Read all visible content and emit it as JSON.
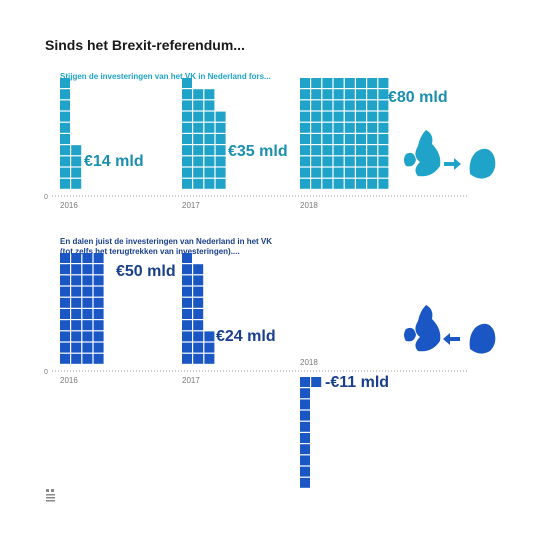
{
  "title": "Sinds het Brexit-referendum...",
  "chart_data": [
    {
      "type": "bar",
      "title": "Stijgen de investeringen van het VK in Nederland fors...",
      "categories": [
        "2016",
        "2017",
        "2018"
      ],
      "values": [
        14,
        35,
        80
      ],
      "value_labels": [
        "€14 mld",
        "€35 mld",
        "€80 mld"
      ],
      "unit": "mld euro",
      "zero_label": "0",
      "color": "#1fa3c8",
      "icon": "uk-to-netherlands-arrow-icon"
    },
    {
      "type": "bar",
      "title_lines": [
        "En dalen juist de investeringen van Nederland in het VK",
        "(tot zelfs het terugtrekken van investeringen)...."
      ],
      "categories": [
        "2016",
        "2017",
        "2018"
      ],
      "values": [
        50,
        24,
        -11
      ],
      "value_labels": [
        "€50 mld",
        "€24 mld",
        "-€11 mld"
      ],
      "unit": "mld euro",
      "zero_label": "0",
      "color": "#1a56c4",
      "icon": "netherlands-to-uk-arrow-icon"
    }
  ],
  "colors": {
    "teal": "#1fa3c8",
    "teal_label": "#1a8fb0",
    "blue": "#1a56c4",
    "navy_label": "#1a3f8c",
    "axis": "#999999",
    "year_text": "#777777"
  }
}
